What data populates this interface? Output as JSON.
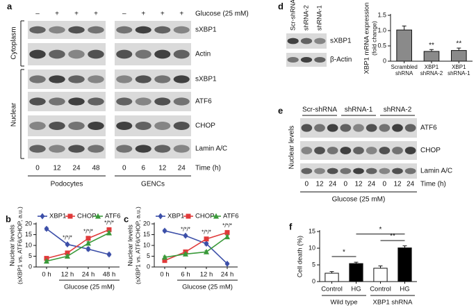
{
  "panel_a": {
    "label": "a",
    "treatment": "Glucose (25 mM)",
    "conditions": [
      "–",
      "+",
      "+",
      "+",
      "–",
      "+",
      "+",
      "+"
    ],
    "cytoplasm": "Cytoplasm",
    "nuclear": "Nuclear",
    "bands": [
      "sXBP1",
      "Actin",
      "sXBP1",
      "ATF6",
      "CHOP",
      "Lamin A/C"
    ],
    "times": [
      "0",
      "12",
      "24",
      "48",
      "0",
      "6",
      "12",
      "24"
    ],
    "time_label": "Time (h)",
    "cell_types": [
      "Podocytes",
      "GENCs"
    ]
  },
  "panel_d_blot": {
    "label": "d",
    "lanes": [
      "Scr-shRNA",
      "shRNA-2",
      "shRNA-1"
    ],
    "bands": [
      "sXBP1",
      "β-Actin"
    ]
  },
  "panel_e": {
    "label": "e",
    "groups": [
      "Scr-shRNA",
      "shRNA-1",
      "shRNA-2"
    ],
    "bands": [
      "ATF6",
      "CHOP",
      "Lamin A/C"
    ],
    "ylabel": "Nuclear levels",
    "times": [
      "0",
      "12",
      "24",
      "0",
      "12",
      "24",
      "0",
      "12",
      "24"
    ],
    "time_label": "Time (h)",
    "treatment": "Glucose (25 mM)"
  },
  "chart_data": [
    {
      "type": "bar",
      "categories": [
        "Scrambled shRNA",
        "XBP1 shRNA-2",
        "XBP1 shRNA-1"
      ],
      "values": [
        1.02,
        0.32,
        0.35
      ],
      "errors": [
        0.13,
        0.06,
        0.08
      ],
      "color": "#8a8a8a",
      "ylim": [
        0,
        1.5
      ],
      "yticks": [
        0,
        0.5,
        {
          "value": 1,
          "label": "1.0"
        },
        {
          "value": 1.5,
          "label": "1.5"
        }
      ],
      "ylabel": [
        "XBP1 mRNA expression",
        "(fold change)"
      ],
      "annotations": [
        null,
        "**",
        "**"
      ]
    },
    {
      "panel": "b",
      "type": "line",
      "categories": [
        "0 h",
        "12 h",
        "24 h",
        "48 h"
      ],
      "series": [
        {
          "name": "XBP1",
          "color": "#3c4fa8",
          "marker": "diamond",
          "values": [
            17.7,
            10.5,
            8.3,
            5.8
          ],
          "errors": [
            0.7,
            0.6,
            0.8,
            0.6
          ]
        },
        {
          "name": "CHOP",
          "color": "#e03a3a",
          "marker": "square",
          "values": [
            4,
            6.5,
            13.3,
            17.3
          ],
          "errors": [
            0.8,
            0.7,
            0.7,
            0.8
          ]
        },
        {
          "name": "ATF6",
          "color": "#3a9a3a",
          "marker": "triangle",
          "values": [
            2.7,
            5,
            11,
            15.8
          ],
          "errors": [
            0.5,
            0.6,
            0.7,
            0.8
          ]
        }
      ],
      "ylim": [
        0,
        20
      ],
      "yticks": [
        0,
        5,
        10,
        15,
        20
      ],
      "ylabel": [
        "Nuclear levels",
        "(sXBP1 vs. ATF6/CHOP, a.u.)"
      ],
      "xlabel": "Glucose (25 mM)",
      "annotations": [
        null,
        "*/*/*",
        "*/*/*",
        "*/*/*"
      ]
    },
    {
      "panel": "c",
      "type": "line",
      "categories": [
        "0 h",
        "6 h",
        "12 h",
        "24 h"
      ],
      "series": [
        {
          "name": "XBP1",
          "color": "#3c4fa8",
          "marker": "diamond",
          "values": [
            16.8,
            14.5,
            10.8,
            1.5
          ],
          "errors": [
            0.6,
            0.6,
            0.7,
            0.5
          ]
        },
        {
          "name": "CHOP",
          "color": "#e03a3a",
          "marker": "square",
          "values": [
            3,
            7,
            13,
            16
          ],
          "errors": [
            0.5,
            0.6,
            0.7,
            0.8
          ]
        },
        {
          "name": "ATF6",
          "color": "#3a9a3a",
          "marker": "triangle",
          "values": [
            4.5,
            6,
            7,
            14
          ],
          "errors": [
            0.6,
            0.5,
            0.6,
            0.7
          ]
        }
      ],
      "ylim": [
        0,
        20
      ],
      "yticks": [
        0,
        5,
        10,
        15,
        20
      ],
      "ylabel": [
        "Nuclear levels",
        "(sXBP1 vs. ATF6/CHOP, a.u.)"
      ],
      "xlabel": "Glucose (25 mM)",
      "annotations": [
        null,
        "*/*/*",
        "*/*/*",
        "*/*/*"
      ]
    },
    {
      "panel": "f",
      "type": "bar",
      "categories": [
        "Control",
        "HG",
        "Control",
        "HG"
      ],
      "values": [
        2.5,
        5.4,
        4,
        10.1
      ],
      "errors": [
        0.5,
        0.4,
        0.7,
        0.6
      ],
      "colors": [
        "#ffffff",
        "#000000",
        "#ffffff",
        "#000000"
      ],
      "ylim": [
        0,
        15
      ],
      "yticks": [
        0,
        5,
        10,
        15
      ],
      "ylabel": "Cell death (%)",
      "groups": [
        "Wild type",
        "XBP1 shRNA"
      ],
      "significance": [
        "*",
        "**",
        "*"
      ]
    }
  ]
}
